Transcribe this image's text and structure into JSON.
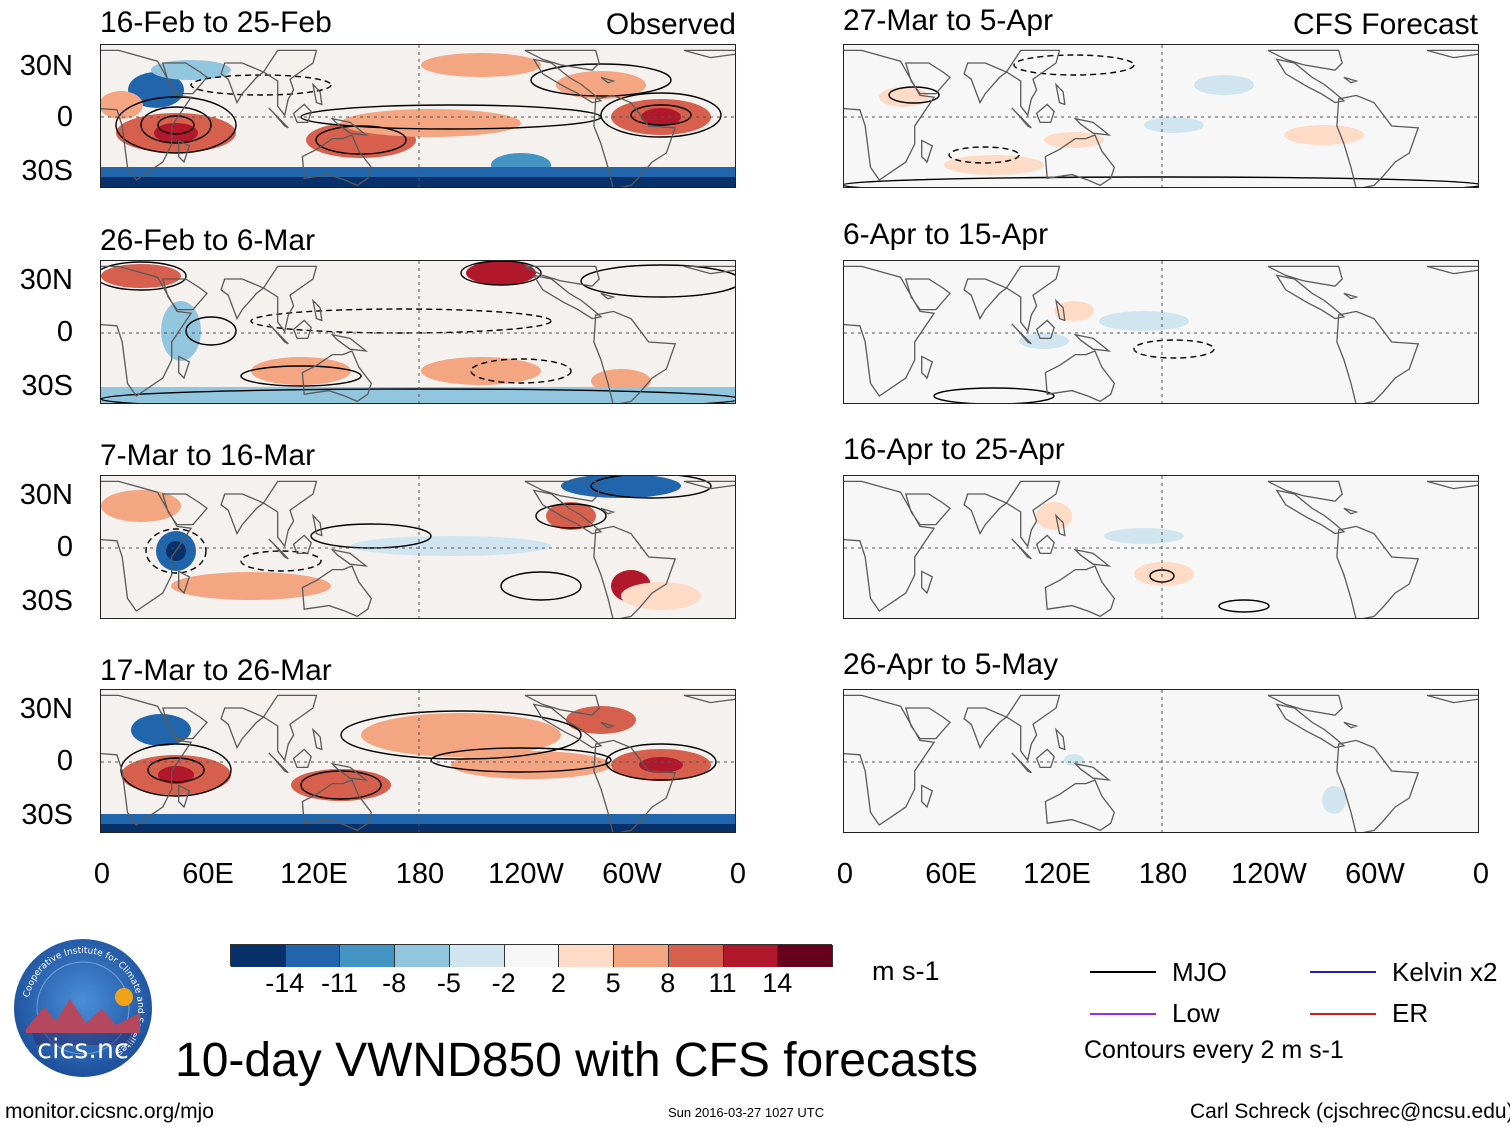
{
  "observed_label": "Observed",
  "forecast_label": "CFS Forecast",
  "observed_panels": [
    {
      "title": "16-Feb to 25-Feb"
    },
    {
      "title": "26-Feb to 6-Mar"
    },
    {
      "title": "7-Mar to 16-Mar"
    },
    {
      "title": "17-Mar to 26-Mar"
    }
  ],
  "forecast_panels": [
    {
      "title": "27-Mar to 5-Apr"
    },
    {
      "title": "6-Apr to 15-Apr"
    },
    {
      "title": "16-Apr to 25-Apr"
    },
    {
      "title": "26-Apr to 5-May"
    }
  ],
  "y_ticks": [
    "30N",
    "0",
    "30S"
  ],
  "x_ticks": [
    "0",
    "60E",
    "120E",
    "180",
    "120W",
    "60W",
    "0"
  ],
  "colorbar": {
    "labels": [
      "-14",
      "-11",
      "-8",
      "-5",
      "-2",
      "2",
      "5",
      "8",
      "11",
      "14"
    ],
    "colors": [
      "#08306b",
      "#2166ac",
      "#4393c3",
      "#92c5de",
      "#d1e5f0",
      "#f7f7f7",
      "#fddbc7",
      "#f4a582",
      "#d6604d",
      "#b2182b",
      "#67001f"
    ],
    "units": "m s-1"
  },
  "legend": {
    "mjo": "MJO",
    "kelvin": "Kelvin x2",
    "low": "Low",
    "er": "ER",
    "note": "Contours every 2 m s-1",
    "colors": {
      "mjo": "#000000",
      "kelvin": "#1f1fb4",
      "low": "#9b30d9",
      "er": "#d11a1a"
    }
  },
  "main_title": "10-day VWND850 with CFS forecasts",
  "footer": {
    "url": "monitor.cicsnc.org/mjo",
    "timestamp": "Sun 2016-03-27 1027 UTC",
    "author": "Carl Schreck (cjschrec@ncsu.edu)"
  },
  "logo": {
    "name": "cics.nc",
    "ring_text": "Cooperative Institute for Climate and Satellites"
  }
}
